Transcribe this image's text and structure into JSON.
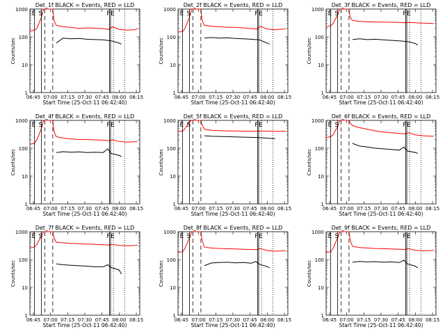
{
  "chart_data": [
    {
      "type": "line",
      "title": "Det_1f BLACK = Events, RED = LLD",
      "series": [
        {
          "color": "#000000",
          "x": [
            20,
            26,
            33,
            40,
            47,
            54,
            61,
            68,
            75,
            77
          ],
          "y": [
            60,
            90,
            85,
            88,
            82,
            80,
            78,
            72,
            60,
            55
          ]
        },
        {
          "color": "#ff0000",
          "x": [
            -3,
            1,
            3,
            7,
            9,
            14,
            17,
            18,
            20,
            26,
            33,
            40,
            47,
            54,
            61,
            66,
            69,
            75,
            82,
            89,
            91
          ],
          "y": [
            160,
            175,
            200,
            500,
            1000,
            1000,
            1000,
            400,
            260,
            230,
            220,
            200,
            210,
            205,
            200,
            185,
            230,
            185,
            175,
            180,
            200
          ]
        }
      ],
      "markers": [
        {
          "x": 1,
          "label": "E",
          "style": "solid"
        },
        {
          "x": 7,
          "label": "S",
          "style": "solid"
        },
        {
          "x": 10,
          "label": "",
          "style": "dashed"
        },
        {
          "x": 17,
          "label": "",
          "style": "dashed"
        },
        {
          "x": 66.5,
          "label": "F",
          "style": "solid"
        },
        {
          "x": 67.5,
          "label": "",
          "style": "solid"
        },
        {
          "x": 70,
          "label": "E",
          "style": "dotted"
        },
        {
          "x": 80,
          "label": "",
          "style": "dotted"
        }
      ]
    },
    {
      "type": "line",
      "title": "Det_2f BLACK = Events, RED = LLD",
      "series": [
        {
          "color": "#000000",
          "x": [
            20,
            26,
            33,
            40,
            47,
            54,
            61,
            68,
            75,
            77
          ],
          "y": [
            90,
            95,
            90,
            92,
            88,
            85,
            82,
            78,
            60,
            55
          ]
        },
        {
          "color": "#ff0000",
          "x": [
            -3,
            1,
            3,
            7,
            9,
            14,
            17,
            18,
            20,
            26,
            33,
            40,
            47,
            54,
            61,
            66,
            69,
            75,
            82,
            89,
            91
          ],
          "y": [
            150,
            155,
            200,
            500,
            1000,
            1000,
            1000,
            400,
            260,
            240,
            230,
            220,
            220,
            210,
            200,
            190,
            240,
            190,
            180,
            190,
            200
          ]
        }
      ],
      "markers": [
        {
          "x": 1,
          "label": "E",
          "style": "solid"
        },
        {
          "x": 7,
          "label": "S",
          "style": "solid"
        },
        {
          "x": 10,
          "label": "",
          "style": "dashed"
        },
        {
          "x": 17,
          "label": "",
          "style": "dashed"
        },
        {
          "x": 66.5,
          "label": "F",
          "style": "solid"
        },
        {
          "x": 67.5,
          "label": "",
          "style": "solid"
        },
        {
          "x": 70,
          "label": "E",
          "style": "dotted"
        },
        {
          "x": 80,
          "label": "",
          "style": "dotted"
        }
      ]
    },
    {
      "type": "line",
      "title": "Det_3f BLACK = Events, RED = LLD",
      "series": [
        {
          "color": "#000000",
          "x": [
            20,
            26,
            33,
            40,
            47,
            54,
            61,
            68,
            75,
            77
          ],
          "y": [
            80,
            85,
            80,
            82,
            78,
            75,
            72,
            68,
            58,
            50
          ]
        },
        {
          "color": "#ff0000",
          "x": [
            -3,
            1,
            3,
            7,
            9,
            14,
            17,
            18,
            20,
            26,
            33,
            40,
            47,
            54,
            61,
            66,
            69,
            75,
            82,
            89,
            91
          ],
          "y": [
            230,
            250,
            300,
            600,
            1000,
            1000,
            1000,
            500,
            390,
            360,
            350,
            340,
            340,
            335,
            330,
            320,
            330,
            320,
            310,
            305,
            300
          ]
        }
      ],
      "markers": [
        {
          "x": 1,
          "label": "E",
          "style": "solid"
        },
        {
          "x": 7,
          "label": "S",
          "style": "solid"
        },
        {
          "x": 10,
          "label": "",
          "style": "dashed"
        },
        {
          "x": 17,
          "label": "",
          "style": "dashed"
        },
        {
          "x": 66.5,
          "label": "F",
          "style": "solid"
        },
        {
          "x": 67.5,
          "label": "",
          "style": "solid"
        },
        {
          "x": 70,
          "label": "E",
          "style": "dotted"
        },
        {
          "x": 80,
          "label": "",
          "style": "dotted"
        }
      ]
    },
    {
      "type": "line",
      "title": "Det_4f BLACK = Events, RED = LLD",
      "series": [
        {
          "color": "#000000",
          "x": [
            20,
            26,
            33,
            40,
            47,
            54,
            61,
            65,
            68,
            75,
            77
          ],
          "y": [
            70,
            75,
            72,
            74,
            70,
            72,
            70,
            95,
            65,
            55,
            50
          ]
        },
        {
          "color": "#ff0000",
          "x": [
            -3,
            1,
            3,
            7,
            9,
            14,
            17,
            18,
            20,
            26,
            33,
            40,
            47,
            54,
            61,
            66,
            69,
            75,
            82,
            89,
            91
          ],
          "y": [
            140,
            150,
            200,
            500,
            1000,
            1000,
            1000,
            400,
            260,
            230,
            215,
            205,
            205,
            200,
            195,
            185,
            200,
            175,
            165,
            170,
            180
          ]
        }
      ],
      "markers": [
        {
          "x": 1,
          "label": "E",
          "style": "solid"
        },
        {
          "x": 7,
          "label": "S",
          "style": "solid"
        },
        {
          "x": 10,
          "label": "",
          "style": "dashed"
        },
        {
          "x": 17,
          "label": "",
          "style": "dashed"
        },
        {
          "x": 66.5,
          "label": "F",
          "style": "solid"
        },
        {
          "x": 67.5,
          "label": "",
          "style": "solid"
        },
        {
          "x": 70,
          "label": "E",
          "style": "dotted"
        },
        {
          "x": 80,
          "label": "",
          "style": "dotted"
        }
      ]
    },
    {
      "type": "line",
      "title": "Det_5f BLACK = Events, RED = LLD",
      "series": [
        {
          "color": "#000000",
          "x": [
            20,
            26,
            33,
            40,
            47,
            54,
            61,
            68,
            75,
            82
          ],
          "y": [
            280,
            270,
            265,
            260,
            255,
            250,
            245,
            240,
            230,
            220
          ]
        },
        {
          "color": "#ff0000",
          "x": [
            -3,
            1,
            3,
            7,
            9,
            14,
            17,
            18,
            20,
            26,
            33,
            40,
            47,
            54,
            61,
            66,
            69,
            75,
            82,
            89,
            91
          ],
          "y": [
            400,
            410,
            500,
            900,
            1000,
            1000,
            1000,
            700,
            480,
            440,
            430,
            420,
            415,
            410,
            410,
            405,
            415,
            410,
            405,
            410,
            410
          ]
        }
      ],
      "markers": [
        {
          "x": 1,
          "label": "E",
          "style": "solid"
        },
        {
          "x": 7,
          "label": "S",
          "style": "solid"
        },
        {
          "x": 10,
          "label": "",
          "style": "dashed"
        },
        {
          "x": 17,
          "label": "",
          "style": "dashed"
        },
        {
          "x": 66.5,
          "label": "F",
          "style": "solid"
        },
        {
          "x": 67.5,
          "label": "",
          "style": "solid"
        },
        {
          "x": 70,
          "label": "E",
          "style": "dotted"
        },
        {
          "x": 80,
          "label": "",
          "style": "dotted"
        }
      ]
    },
    {
      "type": "line",
      "title": "Det_6f BLACK = Events, RED = LLD",
      "series": [
        {
          "color": "#000000",
          "x": [
            20,
            26,
            33,
            40,
            47,
            54,
            61,
            65,
            68,
            75,
            77
          ],
          "y": [
            150,
            120,
            110,
            100,
            95,
            90,
            85,
            110,
            80,
            70,
            65
          ]
        },
        {
          "color": "#ff0000",
          "x": [
            -3,
            1,
            3,
            7,
            9,
            14,
            17,
            18,
            20,
            26,
            33,
            40,
            47,
            54,
            61,
            66,
            69,
            75,
            82,
            89,
            91
          ],
          "y": [
            240,
            260,
            300,
            600,
            1000,
            1000,
            1000,
            800,
            650,
            550,
            480,
            420,
            380,
            360,
            340,
            330,
            360,
            300,
            280,
            270,
            270
          ]
        }
      ],
      "markers": [
        {
          "x": 1,
          "label": "E",
          "style": "solid"
        },
        {
          "x": 7,
          "label": "S",
          "style": "solid"
        },
        {
          "x": 10,
          "label": "",
          "style": "dashed"
        },
        {
          "x": 17,
          "label": "",
          "style": "dashed"
        },
        {
          "x": 66.5,
          "label": "F",
          "style": "solid"
        },
        {
          "x": 67.5,
          "label": "",
          "style": "solid"
        },
        {
          "x": 70,
          "label": "E",
          "style": "dotted"
        },
        {
          "x": 80,
          "label": "",
          "style": "dotted"
        }
      ]
    },
    {
      "type": "line",
      "title": "Det_7f BLACK = Events, RED = LLD",
      "series": [
        {
          "color": "#000000",
          "x": [
            20,
            26,
            33,
            40,
            47,
            54,
            61,
            65,
            68,
            75,
            77
          ],
          "y": [
            70,
            65,
            62,
            60,
            58,
            55,
            55,
            65,
            52,
            42,
            30
          ]
        },
        {
          "color": "#ff0000",
          "x": [
            -3,
            1,
            3,
            7,
            9,
            14,
            17,
            18,
            20,
            26,
            33,
            40,
            47,
            54,
            61,
            66,
            69,
            75,
            82,
            89,
            91
          ],
          "y": [
            260,
            280,
            350,
            700,
            1000,
            1000,
            1000,
            600,
            420,
            400,
            380,
            370,
            360,
            350,
            340,
            330,
            350,
            320,
            310,
            320,
            330
          ]
        }
      ],
      "markers": [
        {
          "x": 1,
          "label": "E",
          "style": "solid"
        },
        {
          "x": 7,
          "label": "S",
          "style": "solid"
        },
        {
          "x": 10,
          "label": "",
          "style": "dashed"
        },
        {
          "x": 17,
          "label": "",
          "style": "dashed"
        },
        {
          "x": 66.5,
          "label": "F",
          "style": "solid"
        },
        {
          "x": 67.5,
          "label": "",
          "style": "solid"
        },
        {
          "x": 70,
          "label": "E",
          "style": "dotted"
        },
        {
          "x": 80,
          "label": "",
          "style": "dotted"
        }
      ]
    },
    {
      "type": "line",
      "title": "Det_8f BLACK = Events, RED = LLD",
      "series": [
        {
          "color": "#000000",
          "x": [
            20,
            26,
            33,
            40,
            47,
            54,
            61,
            65,
            68,
            75,
            77
          ],
          "y": [
            60,
            75,
            78,
            80,
            76,
            78,
            74,
            85,
            68,
            56,
            50
          ]
        },
        {
          "color": "#ff0000",
          "x": [
            -3,
            1,
            3,
            7,
            9,
            14,
            17,
            18,
            20,
            26,
            33,
            40,
            47,
            54,
            61,
            66,
            69,
            75,
            82,
            89,
            91
          ],
          "y": [
            180,
            190,
            250,
            600,
            1000,
            1000,
            1000,
            500,
            280,
            260,
            250,
            245,
            240,
            235,
            230,
            225,
            250,
            210,
            200,
            205,
            210
          ]
        }
      ],
      "markers": [
        {
          "x": 1,
          "label": "E",
          "style": "solid"
        },
        {
          "x": 7,
          "label": "S",
          "style": "solid"
        },
        {
          "x": 10,
          "label": "",
          "style": "dashed"
        },
        {
          "x": 17,
          "label": "",
          "style": "dashed"
        },
        {
          "x": 66.5,
          "label": "F",
          "style": "solid"
        },
        {
          "x": 67.5,
          "label": "",
          "style": "solid"
        },
        {
          "x": 70,
          "label": "E",
          "style": "dotted"
        },
        {
          "x": 80,
          "label": "",
          "style": "dotted"
        }
      ]
    },
    {
      "type": "line",
      "title": "Det_9f BLACK = Events, RED = LLD",
      "series": [
        {
          "color": "#000000",
          "x": [
            20,
            26,
            33,
            40,
            47,
            54,
            61,
            65,
            68,
            75,
            77
          ],
          "y": [
            80,
            85,
            82,
            84,
            80,
            82,
            78,
            95,
            70,
            58,
            50
          ]
        },
        {
          "color": "#ff0000",
          "x": [
            -3,
            1,
            3,
            7,
            9,
            14,
            17,
            18,
            20,
            26,
            33,
            40,
            47,
            54,
            61,
            66,
            69,
            75,
            82,
            89,
            91
          ],
          "y": [
            180,
            190,
            250,
            600,
            1000,
            1000,
            1000,
            500,
            300,
            270,
            260,
            250,
            245,
            240,
            235,
            230,
            245,
            215,
            205,
            210,
            220
          ]
        }
      ],
      "markers": [
        {
          "x": 1,
          "label": "E",
          "style": "solid"
        },
        {
          "x": 7,
          "label": "S",
          "style": "solid"
        },
        {
          "x": 10,
          "label": "",
          "style": "dashed"
        },
        {
          "x": 17,
          "label": "",
          "style": "dashed"
        },
        {
          "x": 66.5,
          "label": "F",
          "style": "solid"
        },
        {
          "x": 67.5,
          "label": "",
          "style": "solid"
        },
        {
          "x": 70,
          "label": "E",
          "style": "dotted"
        },
        {
          "x": 80,
          "label": "",
          "style": "dotted"
        }
      ]
    }
  ],
  "axes": {
    "xlabel": "Start Time (25-Oct-11 06:42:40)",
    "ylabel": "Counts/sec",
    "xlim": [
      -3,
      93
    ],
    "ylim": [
      1,
      1000
    ],
    "yscale": "log",
    "xticks": [
      {
        "v": 0,
        "label": "06:45"
      },
      {
        "v": 15,
        "label": "07:00"
      },
      {
        "v": 30,
        "label": "07:15"
      },
      {
        "v": 45,
        "label": "07:30"
      },
      {
        "v": 60,
        "label": "07:45"
      },
      {
        "v": 75,
        "label": "08:00"
      },
      {
        "v": 90,
        "label": "08:15"
      }
    ],
    "yticks": [
      {
        "v": 1,
        "label": "1"
      },
      {
        "v": 10,
        "label": "10"
      },
      {
        "v": 100,
        "label": "100"
      },
      {
        "v": 1000,
        "label": "1000"
      }
    ]
  }
}
